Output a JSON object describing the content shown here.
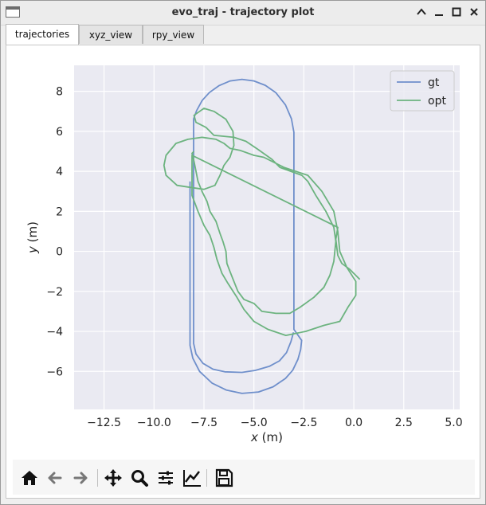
{
  "window": {
    "title": "evo_traj - trajectory plot"
  },
  "tabs": [
    {
      "label": "trajectories",
      "active": true
    },
    {
      "label": "xyz_view",
      "active": false
    },
    {
      "label": "rpy_view",
      "active": false
    }
  ],
  "toolbar": {
    "icons": [
      "home-icon",
      "back-arrow-icon",
      "forward-arrow-icon",
      "pan-icon",
      "zoom-icon",
      "subplots-icon",
      "axes-edit-icon",
      "save-icon"
    ]
  },
  "chart_data": {
    "type": "line",
    "xlabel": "x (m)",
    "ylabel": "y (m)",
    "xlim": [
      -14,
      5.3
    ],
    "ylim": [
      -7.9,
      9.3
    ],
    "xticks": [
      -12.5,
      -10.0,
      -7.5,
      -5.0,
      -2.5,
      0.0,
      2.5,
      5.0
    ],
    "xtick_labels": [
      "−12.5",
      "−10.0",
      "−7.5",
      "−5.0",
      "−2.5",
      "0.0",
      "2.5",
      "5.0"
    ],
    "yticks": [
      -6,
      -4,
      -2,
      0,
      2,
      4,
      6,
      8
    ],
    "ytick_labels": [
      "−6",
      "−4",
      "−2",
      "0",
      "2",
      "4",
      "6",
      "8"
    ],
    "grid": true,
    "legend_position": "top-right",
    "background": "#eaeaf2",
    "series": [
      {
        "name": "gt",
        "color": "#6f8fcb",
        "points": [
          [
            -8.2,
            3.5
          ],
          [
            -8.2,
            -4.7
          ],
          [
            -8.06,
            -5.34
          ],
          [
            -7.72,
            -6.0
          ],
          [
            -7.09,
            -6.59
          ],
          [
            -6.39,
            -6.93
          ],
          [
            -5.6,
            -7.1
          ],
          [
            -4.77,
            -7.03
          ],
          [
            -4.04,
            -6.77
          ],
          [
            -3.42,
            -6.35
          ],
          [
            -3.06,
            -5.94
          ],
          [
            -2.8,
            -5.4
          ],
          [
            -2.66,
            -4.9
          ],
          [
            -2.61,
            -4.45
          ],
          [
            -3.0,
            -3.9
          ],
          [
            -3.0,
            5.95
          ],
          [
            -3.12,
            6.63
          ],
          [
            -3.42,
            7.32
          ],
          [
            -3.9,
            7.93
          ],
          [
            -4.43,
            8.3
          ],
          [
            -5.0,
            8.52
          ],
          [
            -5.6,
            8.6
          ],
          [
            -6.19,
            8.52
          ],
          [
            -6.74,
            8.29
          ],
          [
            -7.23,
            7.94
          ],
          [
            -7.59,
            7.54
          ],
          [
            -7.87,
            7.03
          ],
          [
            -8.02,
            6.62
          ],
          [
            -8.02,
            -4.6
          ],
          [
            -7.9,
            -5.13
          ],
          [
            -7.55,
            -5.6
          ],
          [
            -7.05,
            -5.89
          ],
          [
            -6.46,
            -6.02
          ],
          [
            -5.6,
            -6.05
          ],
          [
            -4.93,
            -5.95
          ],
          [
            -4.21,
            -5.74
          ],
          [
            -3.72,
            -5.47
          ],
          [
            -3.37,
            -5.06
          ],
          [
            -3.15,
            -4.52
          ],
          [
            -3.02,
            -4.05
          ]
        ]
      },
      {
        "name": "opt",
        "color": "#6cb37f",
        "points": [
          [
            -8.0,
            5.0
          ],
          [
            -8.1,
            4.9
          ],
          [
            -8.0,
            4.5
          ],
          [
            -7.9,
            4.0
          ],
          [
            -7.8,
            3.5
          ],
          [
            -7.6,
            3.0
          ],
          [
            -7.35,
            2.5
          ],
          [
            -7.2,
            2.0
          ],
          [
            -6.9,
            1.5
          ],
          [
            -6.7,
            0.9
          ],
          [
            -6.55,
            0.5
          ],
          [
            -6.4,
            0.0
          ],
          [
            -6.35,
            -0.6
          ],
          [
            -6.2,
            -1.0
          ],
          [
            -6.0,
            -1.5
          ],
          [
            -5.8,
            -2.0
          ],
          [
            -5.5,
            -2.4
          ],
          [
            -5.0,
            -2.6
          ],
          [
            -4.6,
            -3.0
          ],
          [
            -3.9,
            -3.1
          ],
          [
            -3.2,
            -3.1
          ],
          [
            -2.7,
            -2.8
          ],
          [
            -2.0,
            -2.3
          ],
          [
            -1.5,
            -1.8
          ],
          [
            -1.2,
            -1.2
          ],
          [
            -1.0,
            -0.5
          ],
          [
            -0.9,
            0.5
          ],
          [
            -1.0,
            1.2
          ],
          [
            -1.4,
            2.0
          ],
          [
            -1.9,
            2.8
          ],
          [
            -2.3,
            3.5
          ],
          [
            -2.6,
            3.8
          ],
          [
            -3.7,
            4.2
          ],
          [
            -4.1,
            4.6
          ],
          [
            -4.8,
            5.1
          ],
          [
            -5.4,
            5.5
          ],
          [
            -6.0,
            5.7
          ],
          [
            -7.0,
            5.8
          ],
          [
            -7.4,
            6.2
          ],
          [
            -7.9,
            6.45
          ],
          [
            -8.0,
            6.8
          ],
          [
            -7.5,
            7.15
          ],
          [
            -7.0,
            7.0
          ],
          [
            -6.4,
            6.6
          ],
          [
            -6.05,
            6.0
          ],
          [
            -6.0,
            5.3
          ],
          [
            -6.2,
            4.7
          ],
          [
            -6.5,
            4.3
          ],
          [
            -6.7,
            3.8
          ],
          [
            -6.95,
            3.3
          ],
          [
            -7.5,
            3.1
          ],
          [
            -8.2,
            3.2
          ],
          [
            -8.85,
            3.3
          ],
          [
            -9.4,
            3.8
          ],
          [
            -9.5,
            4.3
          ],
          [
            -9.4,
            4.8
          ],
          [
            -8.9,
            5.4
          ],
          [
            -8.3,
            5.6
          ],
          [
            -7.6,
            5.7
          ],
          [
            -6.9,
            5.6
          ],
          [
            -6.5,
            5.4
          ],
          [
            -6.2,
            5.15
          ],
          [
            -5.7,
            5.05
          ],
          [
            -5.0,
            4.8
          ],
          [
            -4.5,
            4.7
          ],
          [
            -3.5,
            4.2
          ],
          [
            -2.3,
            3.8
          ],
          [
            -1.6,
            3.0
          ],
          [
            -1.0,
            2.0
          ],
          [
            -0.8,
            1.0
          ],
          [
            -0.7,
            0.0
          ],
          [
            -0.35,
            -0.8
          ],
          [
            0.1,
            -1.5
          ],
          [
            0.1,
            -2.2
          ],
          [
            -0.3,
            -2.8
          ],
          [
            -0.7,
            -3.5
          ],
          [
            -1.5,
            -3.7
          ],
          [
            -2.4,
            -4.0
          ],
          [
            -3.4,
            -4.2
          ],
          [
            -4.3,
            -3.9
          ],
          [
            -5.0,
            -3.5
          ],
          [
            -5.5,
            -2.9
          ],
          [
            -5.85,
            -2.3
          ],
          [
            -6.3,
            -1.6
          ],
          [
            -6.6,
            -1.1
          ],
          [
            -6.85,
            -0.4
          ],
          [
            -7.0,
            0.2
          ],
          [
            -7.2,
            0.8
          ],
          [
            -7.5,
            1.3
          ],
          [
            -7.8,
            2.0
          ],
          [
            -8.1,
            2.8
          ],
          [
            -8.1,
            3.6
          ],
          [
            -8.1,
            4.2
          ],
          [
            -8.1,
            4.8
          ],
          [
            -0.8,
            1.2
          ],
          [
            -0.9,
            0.6
          ],
          [
            -0.8,
            -0.2
          ],
          [
            -0.6,
            -0.6
          ],
          [
            -0.2,
            -0.9
          ],
          [
            0.3,
            -1.4
          ]
        ]
      }
    ]
  }
}
